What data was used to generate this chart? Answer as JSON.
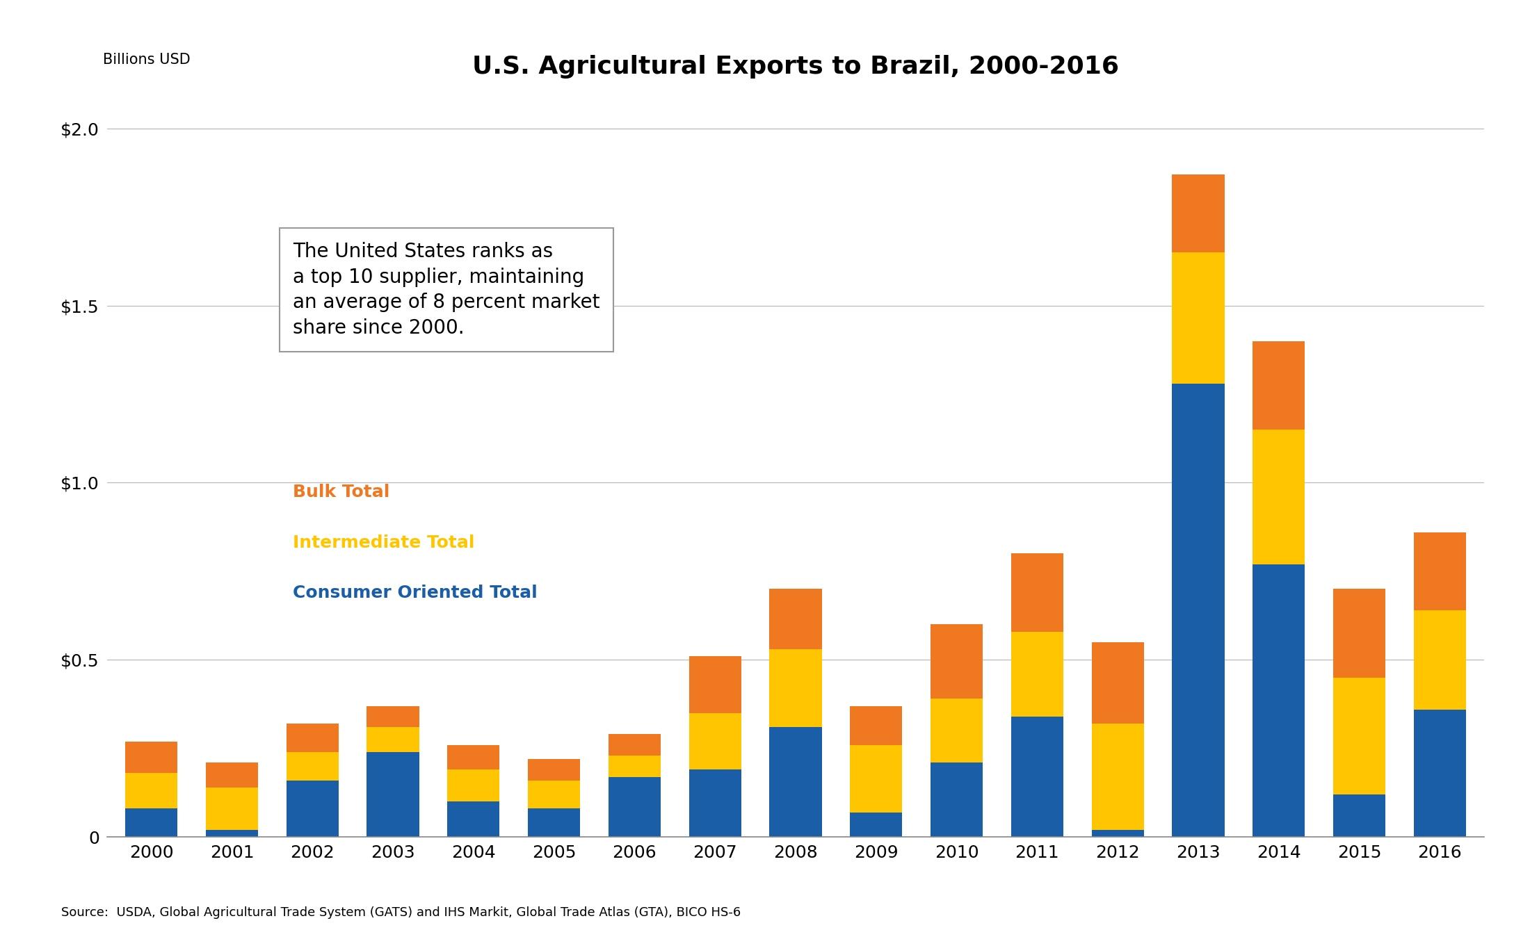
{
  "years": [
    2000,
    2001,
    2002,
    2003,
    2004,
    2005,
    2006,
    2007,
    2008,
    2009,
    2010,
    2011,
    2012,
    2013,
    2014,
    2015,
    2016
  ],
  "consumer_oriented": [
    0.08,
    0.02,
    0.16,
    0.24,
    0.1,
    0.08,
    0.17,
    0.19,
    0.31,
    0.07,
    0.21,
    0.34,
    0.02,
    1.28,
    0.77,
    0.12,
    0.36
  ],
  "intermediate": [
    0.1,
    0.12,
    0.08,
    0.07,
    0.09,
    0.08,
    0.06,
    0.16,
    0.22,
    0.19,
    0.18,
    0.24,
    0.3,
    0.37,
    0.38,
    0.33,
    0.28
  ],
  "bulk": [
    0.09,
    0.07,
    0.08,
    0.06,
    0.07,
    0.06,
    0.06,
    0.16,
    0.17,
    0.11,
    0.21,
    0.22,
    0.23,
    0.22,
    0.25,
    0.25,
    0.22
  ],
  "consumer_color": "#1A5EA8",
  "intermediate_color": "#FFC600",
  "bulk_color": "#F07820",
  "title": "U.S. Agricultural Exports to Brazil, 2000-2016",
  "ylabel": "Billions USD",
  "ylim": [
    0,
    2.1
  ],
  "yticks": [
    0,
    0.5,
    1.0,
    1.5,
    2.0
  ],
  "ytick_labels": [
    "0",
    "$0.5",
    "$1.0",
    "$1.5",
    "$2.0"
  ],
  "source_text": "Source:  USDA, Global Agricultural Trade System (GATS) and IHS Markit, Global Trade Atlas (GTA), BICO HS-6",
  "annotation_text": "The United States ranks as\na top 10 supplier, maintaining\nan average of 8 percent market\nshare since 2000.",
  "legend_bulk": "Bulk Total",
  "legend_intermediate": "Intermediate Total",
  "legend_consumer": "Consumer Oriented Total",
  "background_color": "#FFFFFF"
}
